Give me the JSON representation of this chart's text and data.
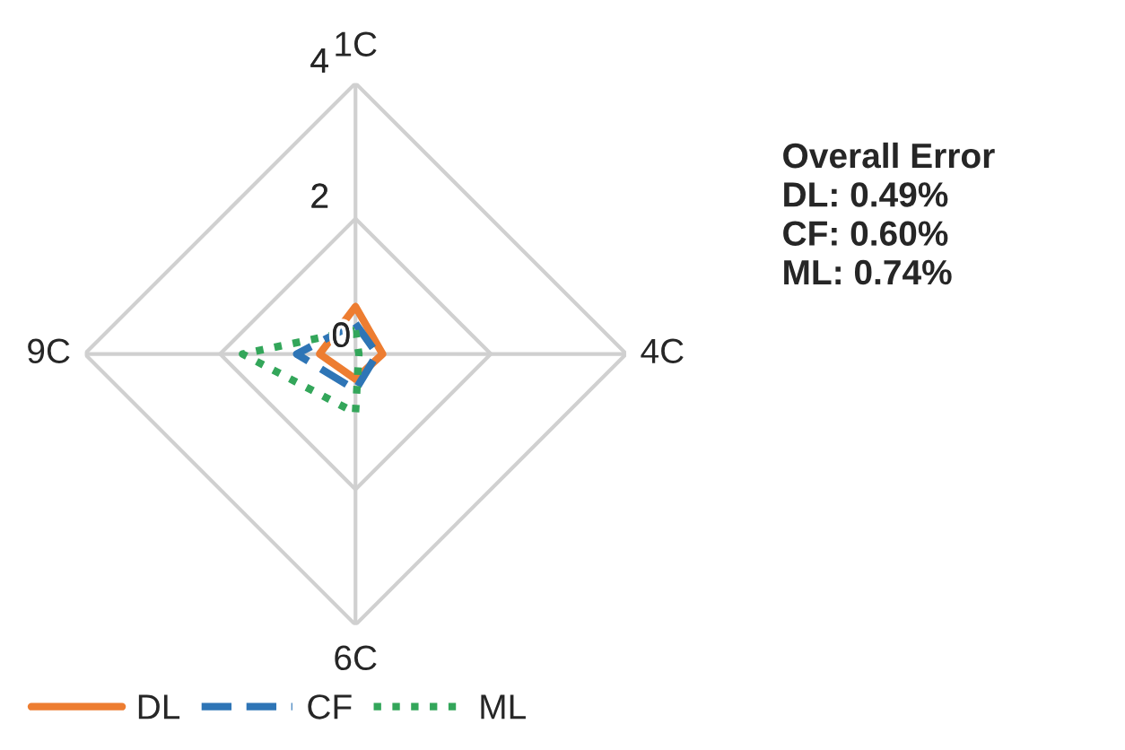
{
  "chart_data": {
    "type": "radar",
    "categories": [
      "1C",
      "4C",
      "6C",
      "9C"
    ],
    "series": [
      {
        "name": "DL",
        "color": "#ed7d31",
        "line_style": "solid",
        "values": [
          0.7,
          0.4,
          0.37,
          0.53
        ]
      },
      {
        "name": "CF",
        "color": "#2e75b6",
        "line_style": "dashed",
        "values": [
          0.45,
          0.32,
          0.53,
          0.87
        ]
      },
      {
        "name": "ML",
        "color": "#33a65a",
        "line_style": "dotted",
        "values": [
          0.35,
          0.05,
          0.87,
          1.67
        ]
      }
    ],
    "ylim": [
      0,
      4
    ],
    "yticks": [
      0,
      2,
      4
    ],
    "grid": true,
    "legend": "bottom",
    "annotations": [
      "Overall Error\nDL: 0.49%\nCF: 0.60%\nML: 0.74%"
    ]
  }
}
